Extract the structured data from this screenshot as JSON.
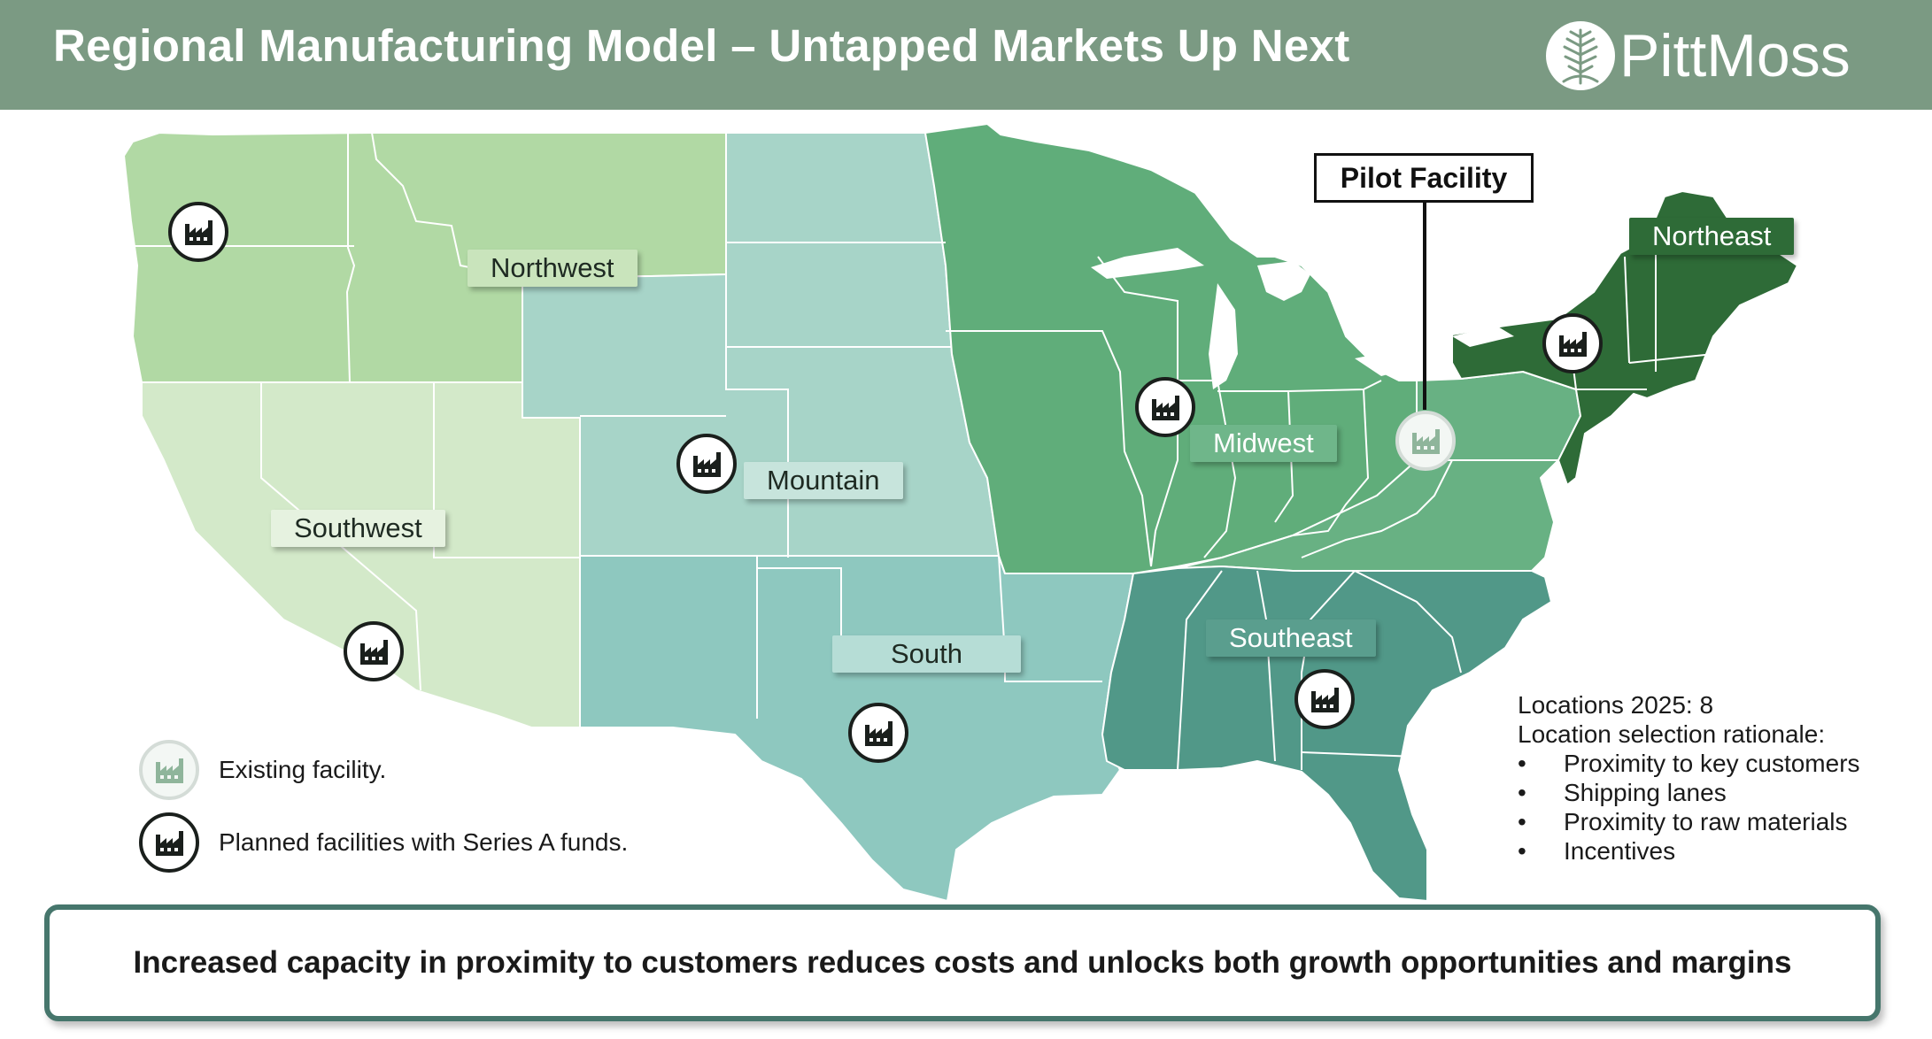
{
  "header": {
    "title": "Regional Manufacturing Model – Untapped Markets Up Next",
    "logo_text": "PittMoss"
  },
  "regions": [
    {
      "id": "northwest",
      "label": "Northwest",
      "color": "#b1d9a4"
    },
    {
      "id": "southwest",
      "label": "Southwest",
      "color": "#d3e9c9"
    },
    {
      "id": "mountain",
      "label": "Mountain",
      "color": "#a7d4c8"
    },
    {
      "id": "south",
      "label": "South",
      "color": "#8ec8bf"
    },
    {
      "id": "midwest",
      "label": "Midwest",
      "color": "#60ad7a"
    },
    {
      "id": "east",
      "label": "",
      "color": "#68b183"
    },
    {
      "id": "northeast",
      "label": "Northeast",
      "color": "#2e6b37"
    },
    {
      "id": "southeast",
      "label": "Southeast",
      "color": "#519888"
    }
  ],
  "pilot": {
    "label": "Pilot Facility"
  },
  "facilities": [
    {
      "id": "pilot",
      "status": "existing",
      "region": "midwest"
    },
    {
      "id": "northwest",
      "status": "planned",
      "region": "northwest"
    },
    {
      "id": "southwest",
      "status": "planned",
      "region": "southwest"
    },
    {
      "id": "mountain",
      "status": "planned",
      "region": "mountain"
    },
    {
      "id": "south",
      "status": "planned",
      "region": "south"
    },
    {
      "id": "midwest",
      "status": "planned",
      "region": "midwest"
    },
    {
      "id": "northeast",
      "status": "planned",
      "region": "northeast"
    },
    {
      "id": "southeast",
      "status": "planned",
      "region": "southeast"
    }
  ],
  "legend": {
    "existing": "Existing facility.",
    "planned": "Planned facilities with Series A funds."
  },
  "notes": {
    "locations": "Locations 2025: 8",
    "rationale_title": "Location selection rationale:",
    "bullets": [
      "Proximity to key customers",
      "Shipping lanes",
      "Proximity to raw materials",
      "Incentives"
    ]
  },
  "banner": {
    "text": "Increased capacity in proximity to customers reduces costs and unlocks both growth opportunities and margins"
  },
  "colors": {
    "header_bg": "#7b9a83",
    "banner_border": "#46766c",
    "state_border": "#ffffff",
    "icon_dark": "#1a1f1c",
    "icon_existing": "#8fb59b"
  }
}
